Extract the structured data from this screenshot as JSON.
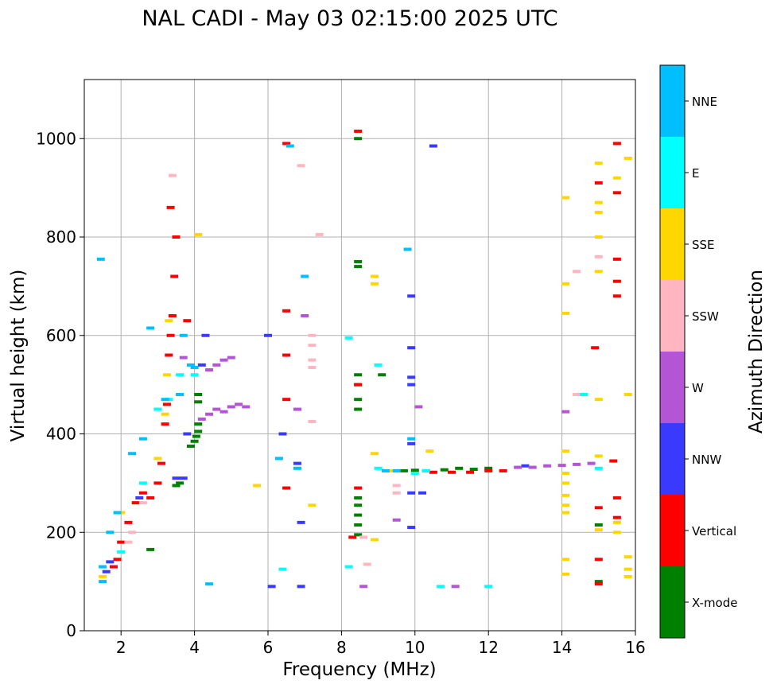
{
  "chart_data": {
    "type": "scatter",
    "title": "NAL CADI - May 03 02:15:00 2025 UTC",
    "xlabel": "Frequency (MHz)",
    "ylabel": "Virtual height (km)",
    "xlim": [
      1,
      16
    ],
    "ylim": [
      0,
      1120
    ],
    "xticks": [
      2,
      4,
      6,
      8,
      10,
      12,
      14,
      16
    ],
    "xtick_labels": [
      "2",
      "4",
      "6",
      "8",
      "10",
      "12",
      "14",
      "16"
    ],
    "yticks": [
      0,
      200,
      400,
      600,
      800,
      1000
    ],
    "ytick_labels": [
      "0",
      "200",
      "400",
      "600",
      "800",
      "1000"
    ],
    "grid": true,
    "colorbar": {
      "label": "Azimuth Direction",
      "categories": [
        {
          "name": "X-mode",
          "color": "#008000"
        },
        {
          "name": "Vertical",
          "color": "#ff0000"
        },
        {
          "name": "NNW",
          "color": "#3a3aff"
        },
        {
          "name": "W",
          "color": "#b455d6"
        },
        {
          "name": "SSW",
          "color": "#ffb6c1"
        },
        {
          "name": "SSE",
          "color": "#ffd700"
        },
        {
          "name": "E",
          "color": "#00ffff"
        },
        {
          "name": "NNE",
          "color": "#00bfff"
        }
      ]
    },
    "series": [
      {
        "name": "X-mode",
        "points": [
          [
            3.9,
            375
          ],
          [
            4.0,
            385
          ],
          [
            4.05,
            395
          ],
          [
            4.1,
            405
          ],
          [
            4.1,
            420
          ],
          [
            4.1,
            465
          ],
          [
            4.1,
            480
          ],
          [
            3.5,
            295
          ],
          [
            3.6,
            300
          ],
          [
            2.8,
            165
          ],
          [
            8.45,
            195
          ],
          [
            8.45,
            215
          ],
          [
            8.45,
            235
          ],
          [
            8.45,
            255
          ],
          [
            8.45,
            270
          ],
          [
            8.45,
            450
          ],
          [
            8.45,
            470
          ],
          [
            8.45,
            500
          ],
          [
            8.45,
            520
          ],
          [
            8.45,
            740
          ],
          [
            8.45,
            750
          ],
          [
            8.45,
            1000
          ],
          [
            10.3,
            325
          ],
          [
            10.8,
            327
          ],
          [
            11.2,
            330
          ],
          [
            11.6,
            328
          ],
          [
            12.0,
            330
          ],
          [
            9.1,
            520
          ],
          [
            15.0,
            215
          ],
          [
            15.0,
            100
          ],
          [
            9.7,
            325
          ],
          [
            10.0,
            326
          ]
        ]
      },
      {
        "name": "Vertical",
        "points": [
          [
            1.8,
            130
          ],
          [
            1.9,
            145
          ],
          [
            2.0,
            180
          ],
          [
            2.2,
            220
          ],
          [
            2.4,
            260
          ],
          [
            2.6,
            280
          ],
          [
            2.8,
            270
          ],
          [
            3.0,
            300
          ],
          [
            3.1,
            340
          ],
          [
            3.2,
            420
          ],
          [
            3.25,
            460
          ],
          [
            3.3,
            560
          ],
          [
            3.35,
            600
          ],
          [
            3.4,
            640
          ],
          [
            3.45,
            720
          ],
          [
            3.5,
            800
          ],
          [
            3.35,
            860
          ],
          [
            3.8,
            630
          ],
          [
            6.5,
            290
          ],
          [
            6.5,
            470
          ],
          [
            6.5,
            560
          ],
          [
            6.5,
            650
          ],
          [
            6.5,
            990
          ],
          [
            8.3,
            190
          ],
          [
            8.45,
            290
          ],
          [
            8.45,
            500
          ],
          [
            8.45,
            1015
          ],
          [
            10.5,
            322
          ],
          [
            11.0,
            322
          ],
          [
            11.5,
            322
          ],
          [
            12.0,
            325
          ],
          [
            12.4,
            325
          ],
          [
            14.9,
            575
          ],
          [
            15.0,
            250
          ],
          [
            15.0,
            145
          ],
          [
            15.0,
            95
          ],
          [
            15.0,
            910
          ],
          [
            15.4,
            345
          ],
          [
            15.5,
            230
          ],
          [
            15.5,
            270
          ],
          [
            15.5,
            680
          ],
          [
            15.5,
            710
          ],
          [
            15.5,
            755
          ],
          [
            15.5,
            890
          ],
          [
            15.5,
            990
          ]
        ]
      },
      {
        "name": "NNW",
        "points": [
          [
            1.6,
            120
          ],
          [
            1.7,
            140
          ],
          [
            2.5,
            270
          ],
          [
            3.7,
            310
          ],
          [
            3.8,
            400
          ],
          [
            4.2,
            540
          ],
          [
            4.3,
            600
          ],
          [
            6.8,
            340
          ],
          [
            6.9,
            90
          ],
          [
            6.9,
            220
          ],
          [
            6.0,
            600
          ],
          [
            6.4,
            400
          ],
          [
            9.9,
            210
          ],
          [
            9.9,
            280
          ],
          [
            9.9,
            380
          ],
          [
            9.9,
            500
          ],
          [
            9.9,
            515
          ],
          [
            9.9,
            575
          ],
          [
            9.9,
            680
          ],
          [
            6.1,
            90
          ],
          [
            10.2,
            280
          ],
          [
            10.5,
            985
          ],
          [
            13.0,
            335
          ],
          [
            3.5,
            310
          ]
        ]
      },
      {
        "name": "W",
        "points": [
          [
            4.2,
            430
          ],
          [
            4.4,
            440
          ],
          [
            4.6,
            450
          ],
          [
            4.8,
            445
          ],
          [
            5.0,
            455
          ],
          [
            5.2,
            460
          ],
          [
            5.4,
            455
          ],
          [
            4.4,
            530
          ],
          [
            4.6,
            540
          ],
          [
            4.8,
            550
          ],
          [
            5.0,
            555
          ],
          [
            3.7,
            555
          ],
          [
            12.8,
            332
          ],
          [
            13.2,
            332
          ],
          [
            13.6,
            335
          ],
          [
            14.0,
            336
          ],
          [
            14.4,
            338
          ],
          [
            14.8,
            340
          ],
          [
            9.5,
            225
          ],
          [
            10.1,
            455
          ],
          [
            11.1,
            90
          ],
          [
            6.8,
            450
          ],
          [
            7.0,
            640
          ],
          [
            8.6,
            90
          ],
          [
            14.1,
            445
          ]
        ]
      },
      {
        "name": "SSW",
        "points": [
          [
            2.2,
            180
          ],
          [
            2.3,
            200
          ],
          [
            2.6,
            260
          ],
          [
            3.4,
            925
          ],
          [
            7.2,
            425
          ],
          [
            7.2,
            535
          ],
          [
            7.2,
            550
          ],
          [
            7.2,
            580
          ],
          [
            7.2,
            600
          ],
          [
            9.5,
            295
          ],
          [
            9.5,
            280
          ],
          [
            8.7,
            135
          ],
          [
            8.6,
            190
          ],
          [
            14.4,
            480
          ],
          [
            14.4,
            730
          ],
          [
            15.0,
            760
          ],
          [
            6.9,
            945
          ],
          [
            7.4,
            805
          ]
        ]
      },
      {
        "name": "SSE",
        "points": [
          [
            1.5,
            110
          ],
          [
            2.0,
            240
          ],
          [
            3.0,
            350
          ],
          [
            3.2,
            440
          ],
          [
            3.25,
            520
          ],
          [
            3.3,
            630
          ],
          [
            4.1,
            805
          ],
          [
            7.2,
            255
          ],
          [
            8.9,
            185
          ],
          [
            8.9,
            360
          ],
          [
            8.9,
            705
          ],
          [
            8.9,
            720
          ],
          [
            9.3,
            325
          ],
          [
            10.4,
            365
          ],
          [
            14.1,
            115
          ],
          [
            14.1,
            145
          ],
          [
            14.1,
            240
          ],
          [
            14.1,
            255
          ],
          [
            14.1,
            275
          ],
          [
            14.1,
            300
          ],
          [
            14.1,
            320
          ],
          [
            14.1,
            365
          ],
          [
            14.1,
            645
          ],
          [
            14.1,
            705
          ],
          [
            14.1,
            880
          ],
          [
            15.0,
            470
          ],
          [
            15.0,
            355
          ],
          [
            15.0,
            205
          ],
          [
            15.0,
            730
          ],
          [
            15.0,
            800
          ],
          [
            15.0,
            850
          ],
          [
            15.0,
            870
          ],
          [
            15.0,
            950
          ],
          [
            15.5,
            920
          ],
          [
            15.5,
            200
          ],
          [
            15.5,
            220
          ],
          [
            15.8,
            960
          ],
          [
            15.8,
            480
          ],
          [
            15.8,
            150
          ],
          [
            15.8,
            125
          ],
          [
            15.8,
            110
          ],
          [
            5.7,
            295
          ]
        ]
      },
      {
        "name": "E",
        "points": [
          [
            2.0,
            160
          ],
          [
            2.6,
            300
          ],
          [
            3.0,
            450
          ],
          [
            3.3,
            470
          ],
          [
            3.6,
            520
          ],
          [
            4.0,
            520
          ],
          [
            6.4,
            125
          ],
          [
            8.2,
            130
          ],
          [
            8.2,
            595
          ],
          [
            9.0,
            540
          ],
          [
            10.3,
            325
          ],
          [
            10.0,
            320
          ],
          [
            14.6,
            480
          ],
          [
            15.0,
            330
          ],
          [
            10.7,
            90
          ],
          [
            12.0,
            90
          ],
          [
            9.0,
            330
          ]
        ]
      },
      {
        "name": "NNE",
        "points": [
          [
            1.45,
            755
          ],
          [
            1.5,
            100
          ],
          [
            1.5,
            130
          ],
          [
            1.7,
            200
          ],
          [
            1.9,
            240
          ],
          [
            2.3,
            360
          ],
          [
            2.6,
            390
          ],
          [
            3.2,
            470
          ],
          [
            3.6,
            480
          ],
          [
            3.7,
            600
          ],
          [
            3.9,
            540
          ],
          [
            4.4,
            95
          ],
          [
            6.3,
            350
          ],
          [
            6.6,
            985
          ],
          [
            6.8,
            330
          ],
          [
            7.0,
            720
          ],
          [
            9.8,
            775
          ],
          [
            9.9,
            390
          ],
          [
            2.8,
            615
          ],
          [
            9.2,
            325
          ],
          [
            9.5,
            325
          ],
          [
            4.0,
            535
          ]
        ]
      }
    ]
  }
}
